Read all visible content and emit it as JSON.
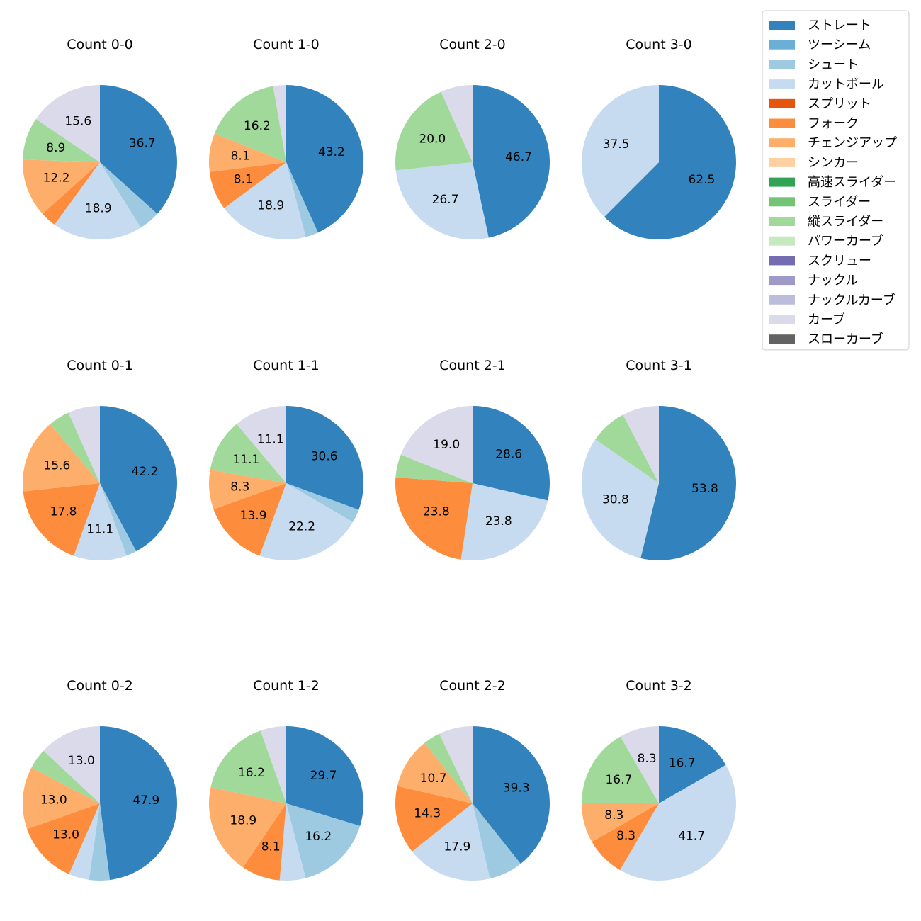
{
  "chart_data": {
    "type": "pie",
    "title": "",
    "start_angle_deg": 90,
    "direction": "clockwise",
    "label_format": "%.1f",
    "label_threshold_pct": 8,
    "legend_position": "top-right",
    "categories": [
      {
        "name": "ストレート",
        "color": "#3182bd"
      },
      {
        "name": "ツーシーム",
        "color": "#6baed6"
      },
      {
        "name": "シュート",
        "color": "#9ecae1"
      },
      {
        "name": "カットボール",
        "color": "#c6dbef"
      },
      {
        "name": "スプリット",
        "color": "#e6550d"
      },
      {
        "name": "フォーク",
        "color": "#fd8d3c"
      },
      {
        "name": "チェンジアップ",
        "color": "#fdae6b"
      },
      {
        "name": "シンカー",
        "color": "#fdd0a2"
      },
      {
        "name": "高速スライダー",
        "color": "#31a354"
      },
      {
        "name": "スライダー",
        "color": "#74c476"
      },
      {
        "name": "縦スライダー",
        "color": "#a1d99b"
      },
      {
        "name": "パワーカーブ",
        "color": "#c7e9c0"
      },
      {
        "name": "スクリュー",
        "color": "#756bb1"
      },
      {
        "name": "ナックル",
        "color": "#9e9ac8"
      },
      {
        "name": "ナックルカーブ",
        "color": "#bcbddc"
      },
      {
        "name": "カーブ",
        "color": "#dadaeb"
      },
      {
        "name": "スローカーブ",
        "color": "#636363"
      }
    ],
    "pies": [
      {
        "title": "Count 0-0",
        "slices": [
          {
            "category": "ストレート",
            "value": 36.3
          },
          {
            "category": "シュート",
            "value": 4.4
          },
          {
            "category": "カットボール",
            "value": 18.7
          },
          {
            "category": "フォーク",
            "value": 3.3
          },
          {
            "category": "チェンジアップ",
            "value": 12.1
          },
          {
            "category": "縦スライダー",
            "value": 8.8
          },
          {
            "category": "カーブ",
            "value": 15.4
          }
        ]
      },
      {
        "title": "Count 1-0",
        "slices": [
          {
            "category": "ストレート",
            "value": 43.2
          },
          {
            "category": "シュート",
            "value": 2.7
          },
          {
            "category": "カットボール",
            "value": 18.9
          },
          {
            "category": "フォーク",
            "value": 8.1
          },
          {
            "category": "チェンジアップ",
            "value": 8.1
          },
          {
            "category": "縦スライダー",
            "value": 16.2
          },
          {
            "category": "カーブ",
            "value": 2.7
          }
        ]
      },
      {
        "title": "Count 2-0",
        "slices": [
          {
            "category": "ストレート",
            "value": 46.7
          },
          {
            "category": "カットボール",
            "value": 26.7
          },
          {
            "category": "縦スライダー",
            "value": 20.0
          },
          {
            "category": "カーブ",
            "value": 6.7
          }
        ]
      },
      {
        "title": "Count 3-0",
        "slices": [
          {
            "category": "ストレート",
            "value": 62.5
          },
          {
            "category": "カットボール",
            "value": 37.5
          }
        ]
      },
      {
        "title": "Count 0-1",
        "slices": [
          {
            "category": "ストレート",
            "value": 42.2
          },
          {
            "category": "シュート",
            "value": 2.2
          },
          {
            "category": "カットボール",
            "value": 11.1
          },
          {
            "category": "フォーク",
            "value": 17.8
          },
          {
            "category": "チェンジアップ",
            "value": 15.6
          },
          {
            "category": "縦スライダー",
            "value": 4.4
          },
          {
            "category": "カーブ",
            "value": 6.7
          }
        ]
      },
      {
        "title": "Count 1-1",
        "slices": [
          {
            "category": "ストレート",
            "value": 30.6
          },
          {
            "category": "シュート",
            "value": 2.8
          },
          {
            "category": "カットボール",
            "value": 22.2
          },
          {
            "category": "フォーク",
            "value": 13.9
          },
          {
            "category": "チェンジアップ",
            "value": 8.3
          },
          {
            "category": "縦スライダー",
            "value": 11.1
          },
          {
            "category": "カーブ",
            "value": 11.1
          }
        ]
      },
      {
        "title": "Count 2-1",
        "slices": [
          {
            "category": "ストレート",
            "value": 28.6
          },
          {
            "category": "カットボール",
            "value": 23.8
          },
          {
            "category": "フォーク",
            "value": 23.8
          },
          {
            "category": "縦スライダー",
            "value": 4.8
          },
          {
            "category": "カーブ",
            "value": 19.0
          }
        ]
      },
      {
        "title": "Count 3-1",
        "slices": [
          {
            "category": "ストレート",
            "value": 53.8
          },
          {
            "category": "カットボール",
            "value": 30.8
          },
          {
            "category": "縦スライダー",
            "value": 7.7
          },
          {
            "category": "カーブ",
            "value": 7.7
          }
        ]
      },
      {
        "title": "Count 0-2",
        "slices": [
          {
            "category": "ストレート",
            "value": 47.8
          },
          {
            "category": "シュート",
            "value": 4.3
          },
          {
            "category": "カットボール",
            "value": 4.3
          },
          {
            "category": "フォーク",
            "value": 13.0
          },
          {
            "category": "チェンジアップ",
            "value": 13.0
          },
          {
            "category": "縦スライダー",
            "value": 4.3
          },
          {
            "category": "カーブ",
            "value": 13.0
          }
        ]
      },
      {
        "title": "Count 1-2",
        "slices": [
          {
            "category": "ストレート",
            "value": 29.7
          },
          {
            "category": "シュート",
            "value": 16.2
          },
          {
            "category": "カットボール",
            "value": 5.4
          },
          {
            "category": "フォーク",
            "value": 8.1
          },
          {
            "category": "チェンジアップ",
            "value": 18.9
          },
          {
            "category": "縦スライダー",
            "value": 16.2
          },
          {
            "category": "カーブ",
            "value": 5.4
          }
        ]
      },
      {
        "title": "Count 2-2",
        "slices": [
          {
            "category": "ストレート",
            "value": 39.3
          },
          {
            "category": "シュート",
            "value": 7.1
          },
          {
            "category": "カットボール",
            "value": 17.9
          },
          {
            "category": "フォーク",
            "value": 14.3
          },
          {
            "category": "チェンジアップ",
            "value": 10.7
          },
          {
            "category": "縦スライダー",
            "value": 3.6
          },
          {
            "category": "カーブ",
            "value": 7.1
          }
        ]
      },
      {
        "title": "Count 3-2",
        "slices": [
          {
            "category": "ストレート",
            "value": 16.7
          },
          {
            "category": "カットボール",
            "value": 41.7
          },
          {
            "category": "フォーク",
            "value": 8.3
          },
          {
            "category": "チェンジアップ",
            "value": 8.3
          },
          {
            "category": "縦スライダー",
            "value": 16.7
          },
          {
            "category": "カーブ",
            "value": 8.3
          }
        ]
      }
    ]
  }
}
